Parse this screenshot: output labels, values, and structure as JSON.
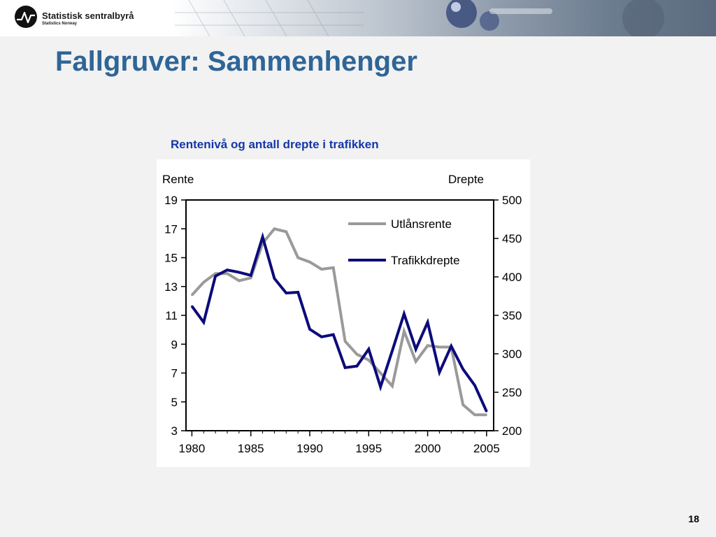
{
  "header": {
    "logo_name": "Statistisk sentralbyrå",
    "logo_sub": "Statistics Norway"
  },
  "slide": {
    "title": "Fallgruver: Sammenhenger",
    "page_number": "18"
  },
  "colors": {
    "title": "#2f6597",
    "chart_title": "#1537a8",
    "series_rente": "#9a9a9a",
    "series_drepte": "#0b0b7a"
  },
  "chart_data": {
    "type": "line",
    "title": "Rentenivå og antall drepte i trafikken",
    "ylabel_left": "Rente",
    "ylabel_right": "Drepte",
    "x_ticks": [
      "1980",
      "1985",
      "1990",
      "1995",
      "2000",
      "2005"
    ],
    "y_left_ticks": [
      "19",
      "17",
      "15",
      "13",
      "11",
      "9",
      "7",
      "5",
      "3"
    ],
    "y_right_ticks": [
      "500",
      "450",
      "400",
      "350",
      "300",
      "250",
      "200"
    ],
    "xlim": [
      1979.5,
      2005.6
    ],
    "ylim_left": [
      3,
      19
    ],
    "ylim_right": [
      200,
      500
    ],
    "legend_position": "top-right",
    "grid": false,
    "series": [
      {
        "name": "Utlånsrente",
        "axis": "left",
        "x": [
          1980,
          1981,
          1982,
          1983,
          1984,
          1985,
          1986,
          1987,
          1988,
          1989,
          1990,
          1991,
          1992,
          1993,
          1994,
          1995,
          1996,
          1997,
          1998,
          1999,
          2000,
          2001,
          2002,
          2003,
          2004,
          2005
        ],
        "values": [
          12.4,
          13.3,
          13.9,
          13.9,
          13.4,
          13.6,
          16.0,
          17.0,
          16.8,
          15.0,
          14.7,
          14.2,
          14.3,
          9.2,
          8.3,
          7.9,
          7.0,
          6.1,
          9.9,
          7.8,
          8.9,
          8.8,
          8.8,
          4.8,
          4.1,
          4.1
        ]
      },
      {
        "name": "Trafikkdrepte",
        "axis": "right",
        "x": [
          1980,
          1981,
          1982,
          1983,
          1984,
          1985,
          1986,
          1987,
          1988,
          1989,
          1990,
          1991,
          1992,
          1993,
          1994,
          1995,
          1996,
          1997,
          1998,
          1999,
          2000,
          2001,
          2002,
          2003,
          2004,
          2005
        ],
        "values": [
          362,
          341,
          401,
          409,
          406,
          402,
          452,
          398,
          379,
          380,
          332,
          322,
          325,
          282,
          284,
          306,
          257,
          304,
          352,
          306,
          341,
          276,
          310,
          280,
          259,
          225
        ]
      }
    ]
  }
}
